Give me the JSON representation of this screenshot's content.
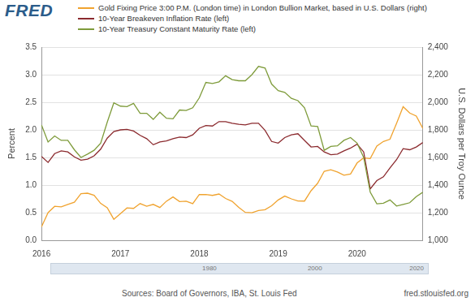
{
  "logo": "FRED",
  "source": "Sources: Board of Governors, IBA, St. Louis Fed",
  "site": "fred.stlouisfed.org",
  "navigator_labels": [
    "1980",
    "2000",
    "2020"
  ],
  "chart_data": {
    "type": "line",
    "legend": "top",
    "grid": true,
    "y_label": "Percent",
    "y2_label": "U.S. Dollars per Troy Ounce",
    "categories": [
      "2016",
      null,
      null,
      null,
      null,
      null,
      null,
      null,
      null,
      null,
      null,
      null,
      "2017",
      null,
      null,
      null,
      null,
      null,
      null,
      null,
      null,
      null,
      null,
      null,
      "2018",
      null,
      null,
      null,
      null,
      null,
      null,
      null,
      null,
      null,
      null,
      null,
      "2019",
      null,
      null,
      null,
      null,
      null,
      null,
      null,
      null,
      null,
      null,
      null,
      "2020",
      null,
      null,
      null,
      null,
      null,
      null,
      null,
      null,
      null,
      null
    ],
    "ylim": [
      0,
      3.5
    ],
    "yticks": [
      {
        "value": 0,
        "label": "0.0"
      },
      0.5,
      {
        "value": 1,
        "label": "1.0"
      },
      1.5,
      {
        "value": 2,
        "label": "2.0"
      },
      2.5,
      {
        "value": 3,
        "label": "3.0"
      },
      3.5
    ],
    "y2lim": [
      1000,
      2400
    ],
    "y2ticks": [
      {
        "value": 1000,
        "label": "1,000"
      },
      {
        "value": 1200,
        "label": "1,200"
      },
      {
        "value": 1400,
        "label": "1,400"
      },
      {
        "value": 1600,
        "label": "1,600"
      },
      {
        "value": 1800,
        "label": "1,800"
      },
      {
        "value": 2000,
        "label": "2,000"
      },
      {
        "value": 2200,
        "label": "2,200"
      },
      {
        "value": 2400,
        "label": "2,400"
      }
    ],
    "series": [
      {
        "name": "Gold Fixing Price 3:00 P.M. (London time) in London Bullion Market, based in U.S. Dollars (right)",
        "color": "#f0a32f",
        "axis": "y2",
        "values": [
          1097,
          1200,
          1246,
          1242,
          1260,
          1276,
          1337,
          1341,
          1326,
          1267,
          1236,
          1152,
          1192,
          1234,
          1231,
          1266,
          1246,
          1260,
          1237,
          1283,
          1314,
          1280,
          1283,
          1265,
          1331,
          1331,
          1325,
          1335,
          1303,
          1282,
          1238,
          1202,
          1199,
          1215,
          1221,
          1250,
          1292,
          1320,
          1300,
          1285,
          1284,
          1359,
          1413,
          1500,
          1511,
          1495,
          1471,
          1480,
          1560,
          1597,
          1592,
          1683,
          1716,
          1732,
          1847,
          1968,
          1922,
          1900,
          1810
        ]
      },
      {
        "name": "10-Year Breakeven Inflation Rate (left)",
        "color": "#8b2a2e",
        "axis": "y",
        "values": [
          1.52,
          1.41,
          1.57,
          1.62,
          1.6,
          1.51,
          1.45,
          1.47,
          1.53,
          1.65,
          1.85,
          1.97,
          2.0,
          2.01,
          1.98,
          1.9,
          1.84,
          1.73,
          1.78,
          1.8,
          1.84,
          1.87,
          1.86,
          1.91,
          2.03,
          2.08,
          2.07,
          2.15,
          2.15,
          2.12,
          2.1,
          2.09,
          2.12,
          2.12,
          1.99,
          1.79,
          1.76,
          1.86,
          1.91,
          1.93,
          1.81,
          1.69,
          1.7,
          1.6,
          1.55,
          1.56,
          1.62,
          1.67,
          1.74,
          1.6,
          0.93,
          1.08,
          1.15,
          1.31,
          1.46,
          1.66,
          1.64,
          1.69,
          1.77
        ]
      },
      {
        "name": "10-Year Treasury Constant Maturity Rate (left)",
        "color": "#7e9b3a",
        "axis": "y",
        "values": [
          2.09,
          1.78,
          1.89,
          1.81,
          1.81,
          1.64,
          1.5,
          1.56,
          1.63,
          1.76,
          2.14,
          2.49,
          2.43,
          2.42,
          2.48,
          2.3,
          2.3,
          2.19,
          2.32,
          2.21,
          2.2,
          2.36,
          2.35,
          2.4,
          2.58,
          2.86,
          2.84,
          2.87,
          2.98,
          2.91,
          2.89,
          2.89,
          3.0,
          3.15,
          3.12,
          2.83,
          2.71,
          2.68,
          2.57,
          2.53,
          2.4,
          2.07,
          2.06,
          1.63,
          1.7,
          1.71,
          1.81,
          1.86,
          1.76,
          1.5,
          0.87,
          0.66,
          0.67,
          0.73,
          0.62,
          0.65,
          0.68,
          0.79,
          0.87
        ]
      }
    ]
  }
}
